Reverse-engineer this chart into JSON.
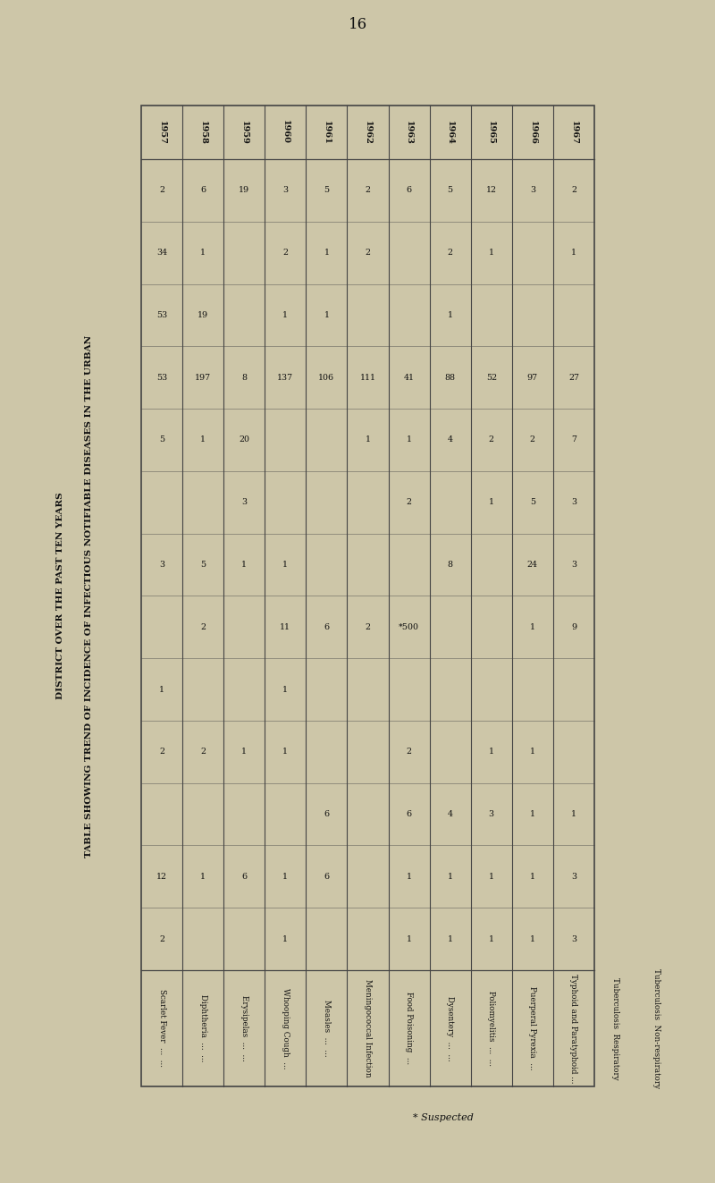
{
  "title_line1": "TABLE SHOWING TREND OF INCIDENCE OF INFECTIOUS NOTIFIABLE DISEASES IN THE URBAN",
  "title_line2": "DISTRICT OVER THE PAST TEN YEARS",
  "page_number": "16",
  "footnote": "* Suspected",
  "years": [
    "1957",
    "1958",
    "1959",
    "1960",
    "1961",
    "1962",
    "1963",
    "1964",
    "1965",
    "1966",
    "1967"
  ],
  "diseases": [
    "Scarlet Fever  ...  ...",
    "Diphtheria  ...  ...",
    "Erysipelas  ...  ...",
    "Whooping Cough  ...",
    "Measles  ...  ...",
    "Meningococcal Infection",
    "Food Poisoning  ...",
    "Dysentery  ...  ...",
    "Poliomyelitis  ...  ...",
    "Puerperal Pyrexia  ...",
    "Typhoid and Paratyphoid ...",
    "Tuberculosis  Respiratory",
    "Tuberculosis  Non-respiratory"
  ],
  "data": [
    [
      "2",
      "6",
      "19",
      "3",
      "5",
      "2",
      "6",
      "5",
      "12",
      "3",
      "2"
    ],
    [
      "34",
      "1",
      "",
      "2",
      "1",
      "2",
      "",
      "2",
      "1",
      "",
      "1"
    ],
    [
      "53",
      "19",
      "",
      "1",
      "1",
      "",
      "",
      "1",
      "",
      "",
      ""
    ],
    [
      "53",
      "197",
      "8",
      "137",
      "106",
      "111",
      "41",
      "88",
      "52",
      "97",
      "27"
    ],
    [
      "5",
      "1",
      "20",
      "",
      "",
      "1",
      "1",
      "4",
      "2",
      "2",
      "7"
    ],
    [
      "",
      "",
      "3",
      "",
      "",
      "",
      "2",
      "",
      "1",
      "5",
      "3"
    ],
    [
      "3",
      "5",
      "1",
      "1",
      "",
      "",
      "",
      "8",
      "",
      "24",
      "3"
    ],
    [
      "",
      "2",
      "",
      "11",
      "6",
      "2",
      "*500",
      "",
      "",
      "1",
      "9"
    ],
    [
      "1",
      "",
      "",
      "1",
      "",
      "",
      "",
      "",
      "",
      "",
      ""
    ],
    [
      "2",
      "2",
      "1",
      "1",
      "",
      "",
      "2",
      "",
      "1",
      "1",
      ""
    ],
    [
      "",
      "",
      "",
      "",
      "6",
      "",
      "6",
      "4",
      "3",
      "1",
      "1"
    ],
    [
      "12",
      "1",
      "6",
      "1",
      "6",
      "",
      "1",
      "1",
      "1",
      "1",
      "3"
    ],
    [
      "2",
      "",
      "",
      "1",
      "",
      "",
      "1",
      "1",
      "1",
      "1",
      "3"
    ]
  ],
  "bg_color": "#cdc6a8",
  "text_color": "#111111",
  "line_color": "#444444",
  "title_fontsize": 7.5,
  "year_fontsize": 7.0,
  "disease_fontsize": 6.8,
  "data_fontsize": 6.8,
  "page_fontsize": 12
}
